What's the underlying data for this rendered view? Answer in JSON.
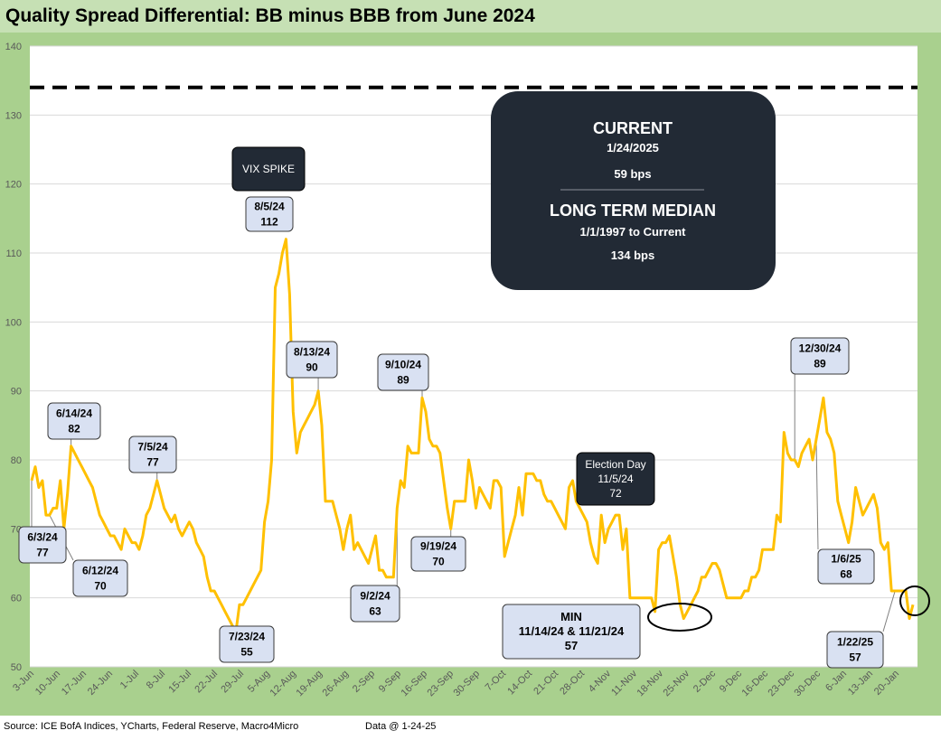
{
  "title": "Quality Spread Differential: BB minus BBB from June 2024",
  "footer": {
    "source": "Source: ICE BofA Indices, YCharts, Federal Reserve, Macro4Micro",
    "data_date": "Data @ 1-24-25"
  },
  "colors": {
    "line": "#ffc000",
    "median_line": "#000000",
    "plot_bg": "#ffffff",
    "outer_bg": "#a9d08e",
    "callout_fill": "#d9e1f2",
    "dark_box": "#222a35"
  },
  "chart_data": {
    "type": "line",
    "title": "Quality Spread Differential: BB minus BBB from June 2024",
    "xlabel": "",
    "ylabel": "",
    "ylim": [
      50,
      140
    ],
    "yticks": [
      50,
      60,
      70,
      80,
      90,
      100,
      110,
      120,
      130,
      140
    ],
    "grid": "horizontal",
    "xtick_labels": [
      "3-Jun",
      "10-Jun",
      "17-Jun",
      "24-Jun",
      "1-Jul",
      "8-Jul",
      "15-Jul",
      "22-Jul",
      "29-Jul",
      "5-Aug",
      "12-Aug",
      "19-Aug",
      "26-Aug",
      "2-Sep",
      "9-Sep",
      "16-Sep",
      "23-Sep",
      "30-Sep",
      "7-Oct",
      "14-Oct",
      "21-Oct",
      "28-Oct",
      "4-Nov",
      "11-Nov",
      "18-Nov",
      "25-Nov",
      "2-Dec",
      "9-Dec",
      "16-Dec",
      "23-Dec",
      "30-Dec",
      "6-Jan",
      "13-Jan",
      "20-Jan"
    ],
    "series": [
      {
        "values": [
          77,
          79,
          76,
          77,
          72,
          72,
          73,
          73,
          77,
          70,
          75,
          82,
          81,
          80,
          79,
          78,
          77,
          76,
          74,
          72,
          71,
          70,
          69,
          69,
          68,
          67,
          70,
          69,
          68,
          68,
          67,
          69,
          72,
          73,
          75,
          77,
          75,
          73,
          72,
          71,
          72,
          70,
          69,
          70,
          71,
          70,
          68,
          67,
          66,
          63,
          61,
          61,
          60,
          59,
          58,
          57,
          56,
          55,
          59,
          59,
          60,
          61,
          62,
          63,
          64,
          71,
          74,
          80,
          105,
          107,
          110,
          112,
          104,
          87,
          81,
          84,
          85,
          86,
          87,
          88,
          90,
          85,
          74,
          74,
          74,
          72,
          70,
          67,
          70,
          72,
          67,
          68,
          67,
          66,
          65,
          67,
          69,
          64,
          64,
          63,
          63,
          63,
          73,
          77,
          76,
          82,
          81,
          81,
          81,
          89,
          87,
          83,
          82,
          82,
          81,
          77,
          73,
          70,
          74,
          74,
          74,
          74,
          80,
          77,
          73,
          76,
          75,
          74,
          73,
          77,
          77,
          76,
          66,
          68,
          70,
          72,
          76,
          72,
          78,
          78,
          78,
          77,
          77,
          75,
          74,
          74,
          73,
          72,
          71,
          70,
          76,
          77,
          74,
          73,
          72,
          71,
          68,
          66,
          65,
          72,
          68,
          70,
          71,
          72,
          72,
          67,
          70,
          60,
          60,
          60,
          60,
          60,
          60,
          60,
          58,
          67,
          68,
          68,
          69,
          66,
          63,
          59,
          57,
          58,
          59,
          60,
          61,
          63,
          63,
          64,
          65,
          65,
          64,
          62,
          60,
          60,
          60,
          60,
          60,
          61,
          61,
          63,
          63,
          64,
          67,
          67,
          67,
          67,
          72,
          71,
          84,
          81,
          80,
          80,
          79,
          81,
          82,
          83,
          80,
          83,
          86,
          89,
          84,
          83,
          81,
          74,
          72,
          70,
          68,
          71,
          76,
          74,
          72,
          73,
          74,
          75,
          73,
          68,
          67,
          68,
          61,
          61,
          61,
          61,
          61,
          57,
          59
        ]
      },
      {
        "name": "LONG TERM MEDIAN",
        "values": [
          134,
          134
        ]
      }
    ],
    "annotations": [
      {
        "type": "dark_box",
        "lines": [
          "VIX SPIKE"
        ]
      },
      {
        "type": "callout",
        "lines": [
          "8/5/24",
          "112"
        ]
      },
      {
        "type": "callout",
        "lines": [
          "6/14/24",
          "82"
        ]
      },
      {
        "type": "callout",
        "lines": [
          "7/5/24",
          "77"
        ]
      },
      {
        "type": "callout",
        "lines": [
          "6/3/24",
          "77"
        ]
      },
      {
        "type": "callout",
        "lines": [
          "6/12/24",
          "70"
        ]
      },
      {
        "type": "callout",
        "lines": [
          "7/23/24",
          "55"
        ]
      },
      {
        "type": "callout",
        "lines": [
          "8/13/24",
          "90"
        ]
      },
      {
        "type": "callout",
        "lines": [
          "9/2/24",
          "63"
        ]
      },
      {
        "type": "callout",
        "lines": [
          "9/10/24",
          "89"
        ]
      },
      {
        "type": "callout",
        "lines": [
          "9/19/24",
          "70"
        ]
      },
      {
        "type": "dark_box",
        "lines": [
          "Election Day",
          "11/5/24",
          "72"
        ]
      },
      {
        "type": "callout",
        "lines": [
          "MIN",
          "11/14/24 & 11/21/24",
          "57"
        ]
      },
      {
        "type": "callout",
        "lines": [
          "12/30/24",
          "89"
        ]
      },
      {
        "type": "callout",
        "lines": [
          "1/6/25",
          "68"
        ]
      },
      {
        "type": "callout",
        "lines": [
          "1/22/25",
          "57"
        ]
      }
    ],
    "info_box": {
      "current_label": "CURRENT",
      "current_date": "1/24/2025",
      "current_value": "59 bps",
      "median_label": "LONG TERM MEDIAN",
      "median_range": "1/1/1997 to Current",
      "median_value": "134 bps"
    }
  }
}
